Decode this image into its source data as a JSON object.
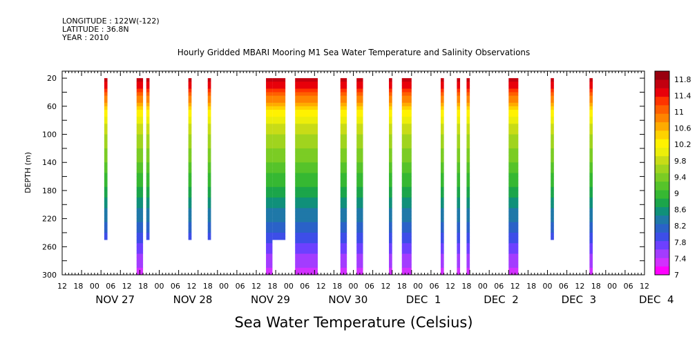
{
  "header": {
    "longitude": "LONGITUDE : 122W(-122)",
    "latitude": "LATITUDE : 36.8N",
    "year": "YEAR : 2010"
  },
  "chart_data": {
    "type": "heatmap",
    "title": "Hourly Gridded MBARI Mooring M1 Sea Water Temperature and Salinity Observations",
    "xlabel": "",
    "ylabel": "DEPTH (m)",
    "colorbar_label": "Sea Water Temperature (Celsius)",
    "y_ticks": [
      20,
      60,
      100,
      140,
      180,
      220,
      260,
      300
    ],
    "ylim": [
      300,
      10
    ],
    "x_hour_tick_labels": [
      "12",
      "18",
      "00",
      "06",
      "12",
      "18",
      "00",
      "06",
      "12",
      "18",
      "00",
      "06",
      "12",
      "18",
      "00",
      "06",
      "12",
      "18",
      "00",
      "06",
      "12",
      "18",
      "00",
      "06",
      "12",
      "18",
      "00",
      "06",
      "12",
      "18",
      "00",
      "06",
      "12",
      "18",
      "00",
      "06",
      "12"
    ],
    "x_day_labels": [
      "NOV 27",
      "NOV 28",
      "NOV 29",
      "NOV 30",
      "DEC  1",
      "DEC  2",
      "DEC  3",
      "DEC  4"
    ],
    "x_range_hours": [
      -12,
      168
    ],
    "colorbar_levels": [
      "11.8",
      "11.4",
      "11",
      "10.6",
      "10.2",
      "9.8",
      "9.4",
      "9",
      "8.6",
      "8.2",
      "7.8",
      "7.4",
      "7"
    ],
    "colorbar_range": [
      7,
      12
    ],
    "palette": [
      "#ff00ff",
      "#d230ff",
      "#a33cff",
      "#6d40ff",
      "#3d4ee8",
      "#2a62c8",
      "#1f78a8",
      "#10907a",
      "#1ba54a",
      "#36b832",
      "#56c32a",
      "#7bcc24",
      "#a0d41e",
      "#c8dc17",
      "#ecee0a",
      "#fff200",
      "#ffd200",
      "#ffab00",
      "#ff8400",
      "#ff5f00",
      "#ff3400",
      "#e8000a",
      "#c2000f",
      "#99000f"
    ],
    "profile": {
      "depths": [
        20,
        40,
        60,
        80,
        100,
        120,
        140,
        160,
        180,
        200,
        220,
        240,
        260,
        280,
        300
      ],
      "temperature": [
        11.8,
        11.2,
        10.5,
        10.0,
        9.7,
        9.5,
        9.3,
        9.05,
        8.8,
        8.55,
        8.3,
        8.05,
        7.75,
        7.5,
        7.3
      ]
    },
    "segments": [
      {
        "start_hour": 1,
        "end_hour": 2,
        "max_depth": 250
      },
      {
        "start_hour": 11,
        "end_hour": 13,
        "max_depth": 300
      },
      {
        "start_hour": 14,
        "end_hour": 15,
        "max_depth": 250
      },
      {
        "start_hour": 27,
        "end_hour": 28,
        "max_depth": 250
      },
      {
        "start_hour": 33,
        "end_hour": 34,
        "max_depth": 250
      },
      {
        "start_hour": 51,
        "end_hour": 53,
        "max_depth": 300
      },
      {
        "start_hour": 53,
        "end_hour": 57,
        "max_depth": 250
      },
      {
        "start_hour": 60,
        "end_hour": 67,
        "max_depth": 300
      },
      {
        "start_hour": 74,
        "end_hour": 76,
        "max_depth": 300
      },
      {
        "start_hour": 79,
        "end_hour": 81,
        "max_depth": 300
      },
      {
        "start_hour": 89,
        "end_hour": 90,
        "max_depth": 300
      },
      {
        "start_hour": 93,
        "end_hour": 96,
        "max_depth": 300
      },
      {
        "start_hour": 105,
        "end_hour": 106,
        "max_depth": 300
      },
      {
        "start_hour": 110,
        "end_hour": 111,
        "max_depth": 300
      },
      {
        "start_hour": 113,
        "end_hour": 114,
        "max_depth": 300
      },
      {
        "start_hour": 126,
        "end_hour": 129,
        "max_depth": 300
      },
      {
        "start_hour": 139,
        "end_hour": 140,
        "max_depth": 250
      },
      {
        "start_hour": 151,
        "end_hour": 152,
        "max_depth": 300
      }
    ]
  }
}
